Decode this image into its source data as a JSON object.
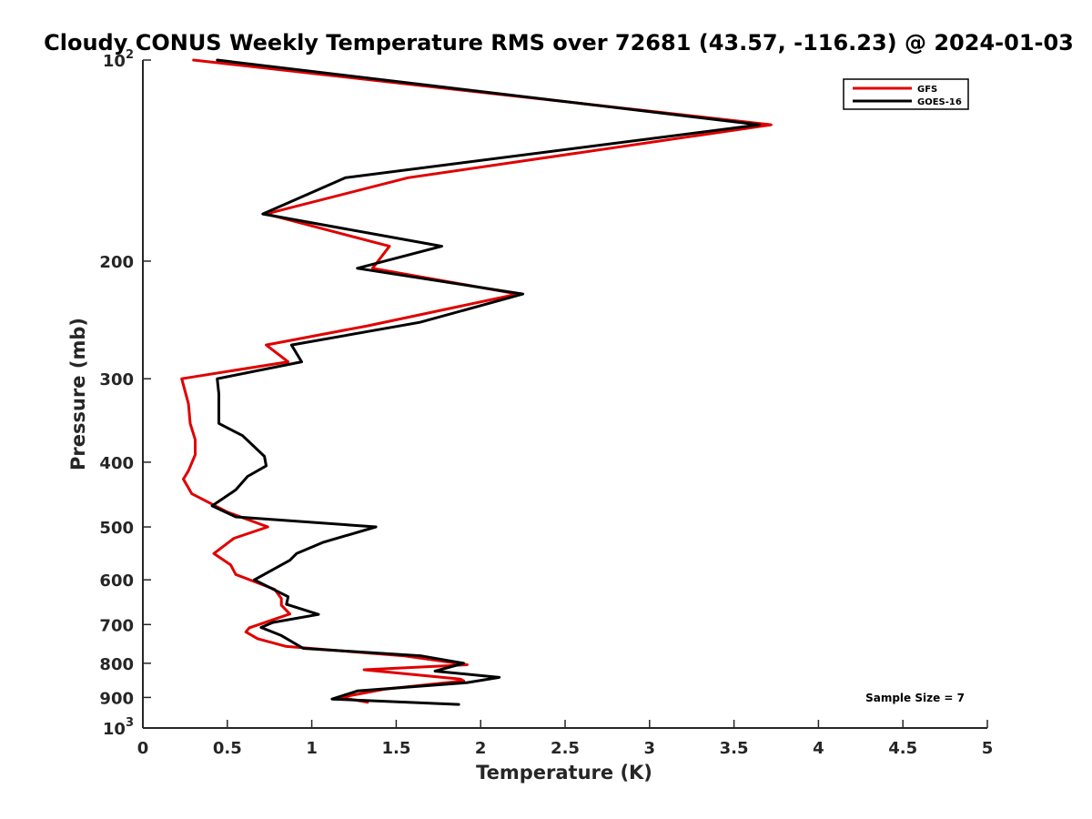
{
  "chart_data": {
    "type": "line",
    "title": "Cloudy CONUS Weekly Temperature RMS over 72681 (43.57, -116.23) @ 2024-01-03",
    "xlabel": "Temperature (K)",
    "ylabel": "Pressure (mb)",
    "xlim": [
      0,
      5
    ],
    "ylim": [
      100,
      1000
    ],
    "y_scale": "log",
    "y_reversed": true,
    "grid": false,
    "legend_position": "top-right",
    "x_ticks": [
      "0",
      "0.5",
      "1",
      "1.5",
      "2",
      "2.5",
      "3",
      "3.5",
      "4",
      "4.5",
      "5"
    ],
    "y_ticks": [
      {
        "value": 100,
        "base": "10",
        "exp": "2"
      },
      {
        "value": 200,
        "label": "200"
      },
      {
        "value": 300,
        "label": "300"
      },
      {
        "value": 400,
        "label": "400"
      },
      {
        "value": 500,
        "label": "500"
      },
      {
        "value": 600,
        "label": "600"
      },
      {
        "value": 700,
        "label": "700"
      },
      {
        "value": 800,
        "label": "800"
      },
      {
        "value": 900,
        "label": "900"
      },
      {
        "value": 1000,
        "base": "10",
        "exp": "3"
      }
    ],
    "series": [
      {
        "name": "GFS",
        "color": "#e00000",
        "points": [
          [
            0.3,
            100
          ],
          [
            3.72,
            125
          ],
          [
            1.57,
            150
          ],
          [
            0.73,
            170
          ],
          [
            1.46,
            190
          ],
          [
            1.36,
            205
          ],
          [
            2.22,
            224
          ],
          [
            1.33,
            250
          ],
          [
            0.73,
            267
          ],
          [
            0.86,
            283
          ],
          [
            0.23,
            300
          ],
          [
            0.27,
            327
          ],
          [
            0.28,
            350
          ],
          [
            0.31,
            370
          ],
          [
            0.31,
            390
          ],
          [
            0.27,
            412
          ],
          [
            0.24,
            424
          ],
          [
            0.29,
            446
          ],
          [
            0.5,
            475
          ],
          [
            0.74,
            500
          ],
          [
            0.54,
            520
          ],
          [
            0.42,
            548
          ],
          [
            0.52,
            570
          ],
          [
            0.55,
            589
          ],
          [
            0.78,
            620
          ],
          [
            0.82,
            640
          ],
          [
            0.82,
            655
          ],
          [
            0.87,
            675
          ],
          [
            0.63,
            708
          ],
          [
            0.61,
            718
          ],
          [
            0.68,
            735
          ],
          [
            0.85,
            755
          ],
          [
            1.55,
            780
          ],
          [
            1.92,
            804
          ],
          [
            1.31,
            818
          ],
          [
            1.88,
            845
          ],
          [
            1.9,
            850
          ],
          [
            1.43,
            875
          ],
          [
            1.17,
            900
          ],
          [
            1.33,
            915
          ]
        ]
      },
      {
        "name": "GOES-16",
        "color": "#000000",
        "points": [
          [
            0.44,
            100
          ],
          [
            3.65,
            125
          ],
          [
            1.2,
            150
          ],
          [
            0.71,
            170
          ],
          [
            1.77,
            190
          ],
          [
            1.27,
            205
          ],
          [
            2.25,
            224
          ],
          [
            1.64,
            247
          ],
          [
            0.88,
            267
          ],
          [
            0.94,
            283
          ],
          [
            0.44,
            300
          ],
          [
            0.45,
            316
          ],
          [
            0.45,
            350
          ],
          [
            0.59,
            365
          ],
          [
            0.72,
            392
          ],
          [
            0.73,
            405
          ],
          [
            0.62,
            420
          ],
          [
            0.55,
            440
          ],
          [
            0.41,
            465
          ],
          [
            0.55,
            483
          ],
          [
            1.38,
            500
          ],
          [
            1.07,
            527
          ],
          [
            0.91,
            548
          ],
          [
            0.87,
            561
          ],
          [
            0.66,
            600
          ],
          [
            0.86,
            636
          ],
          [
            0.85,
            653
          ],
          [
            1.04,
            676
          ],
          [
            0.77,
            695
          ],
          [
            0.7,
            707
          ],
          [
            0.82,
            727
          ],
          [
            0.95,
            760
          ],
          [
            1.65,
            780
          ],
          [
            1.9,
            800
          ],
          [
            1.73,
            822
          ],
          [
            2.11,
            840
          ],
          [
            1.92,
            855
          ],
          [
            1.27,
            880
          ],
          [
            1.12,
            905
          ],
          [
            1.87,
            922
          ]
        ]
      }
    ],
    "annotation": "Sample Size = 7"
  }
}
